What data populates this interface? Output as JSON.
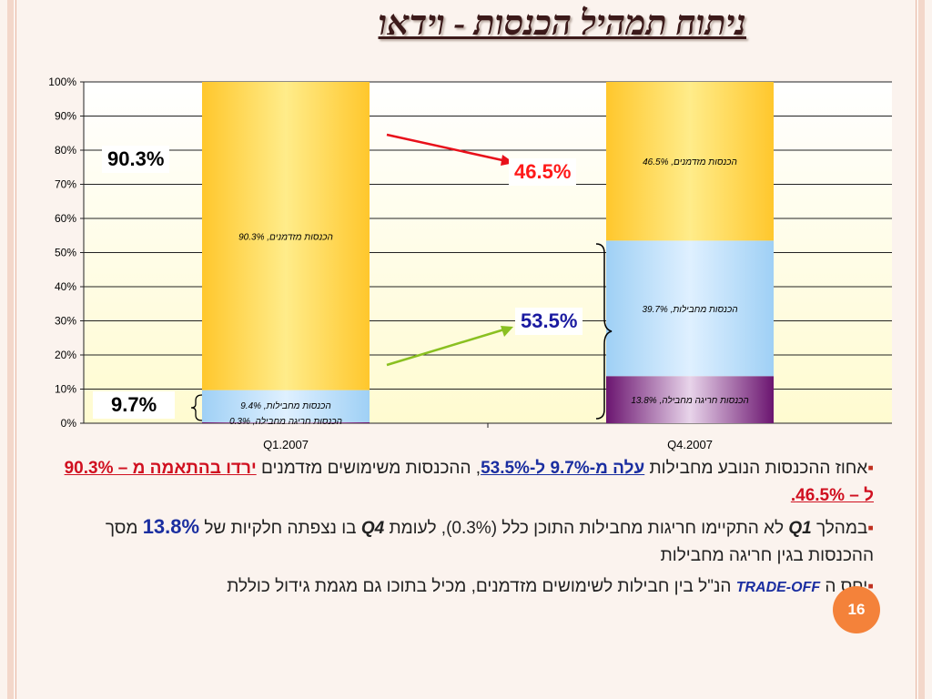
{
  "title": "ניתוח תמהיל הכנסות - וידאו",
  "chart_data": {
    "type": "bar",
    "stacked": true,
    "categories": [
      "Q1.2007",
      "Q4.2007"
    ],
    "series": [
      {
        "name": "הכנסות חריגה מחבילה",
        "values": [
          0.3,
          13.8
        ],
        "color": "#7b1c7c",
        "labels": [
          "הכנסות חריגה מחבילה, 0.3%",
          "הכנסות חריגה מחבילה, 13.8%"
        ]
      },
      {
        "name": "הכנסות מחבילות",
        "values": [
          9.4,
          39.7
        ],
        "color": "#9fd0f5",
        "labels": [
          "הכנסות מחבילות, 9.4%",
          "הכנסות מחבילות, 39.7%"
        ]
      },
      {
        "name": "הכנסות מזדמנים",
        "values": [
          90.3,
          46.5
        ],
        "color": "#ffcc33",
        "labels": [
          "הכנסות מזדמנים, 90.3%",
          "הכנסות מזדמנים, 46.5%"
        ]
      }
    ],
    "ylim": [
      0,
      100
    ],
    "yticks": [
      "0%",
      "10%",
      "20%",
      "30%",
      "40%",
      "50%",
      "60%",
      "70%",
      "80%",
      "90%",
      "100%"
    ],
    "grid": true,
    "annotations": [
      "90.3%",
      "9.7%",
      "46.5%",
      "53.5%"
    ]
  },
  "bullets": {
    "b1": {
      "t1": "אחוז ההכנסות הנובע מחבילות ",
      "t2": "עלה מ-9.7% ל-53.5%",
      "t3": ", ההכנסות משימושים מזדמנים ",
      "t4": "ירדו",
      "t5": " בהתאמה מ – 90.3% ל – 46.5%."
    },
    "b2": {
      "t1": "במהלך ",
      "t2": "Q1",
      "t3": " לא התקיימו חריגות מחבילות התוכן כלל (0.3%), לעומת ",
      "t4": "Q4",
      "t5": " בו נצפתה חלקיות של ",
      "t6": "13.8%",
      "t7": " מסך ההכנסות בגין חריגה מחבילות"
    },
    "b3": {
      "t1": "יחס ה ",
      "t2": "TRADE-OFF",
      "t3": " הנ\"ל בין חבילות לשימושים מזדמנים, מכיל בתוכו גם מגמת גידול כוללת"
    },
    "marker": "▪"
  },
  "page_number": "16"
}
